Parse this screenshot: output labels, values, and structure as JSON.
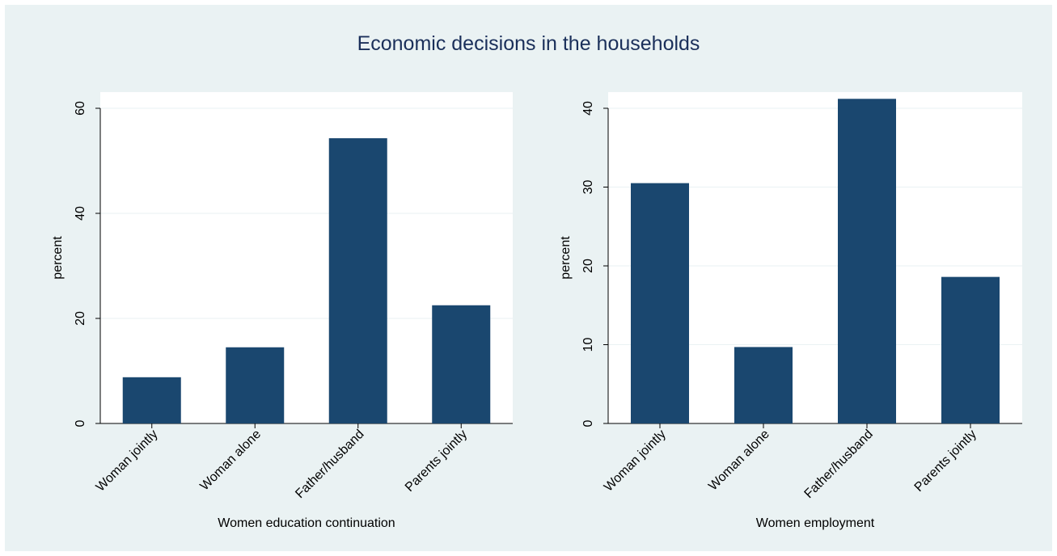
{
  "title": "Economic decisions in the households",
  "colors": {
    "background": "#eaf2f3",
    "plot_area": "#ffffff",
    "bar": "#1a476f",
    "grid": "#eaf2f3",
    "title": "#1a2f5a"
  },
  "chart_data": [
    {
      "type": "bar",
      "categories": [
        "Woman jointly",
        "Woman alone",
        "Father/husband",
        "Parents jointly"
      ],
      "values": [
        8.8,
        14.5,
        54.3,
        22.5
      ],
      "title": "",
      "xlabel": "Women education continuation",
      "ylabel": "percent",
      "ylim": [
        0,
        60
      ],
      "yticks": [
        0,
        20,
        40,
        60
      ],
      "grid": true
    },
    {
      "type": "bar",
      "categories": [
        "Woman jointly",
        "Woman alone",
        "Father/husband",
        "Parents jointly"
      ],
      "values": [
        30.5,
        9.7,
        41.2,
        18.6
      ],
      "title": "",
      "xlabel": "Women employment",
      "ylabel": "percent",
      "ylim": [
        0,
        40
      ],
      "yticks": [
        0,
        10,
        20,
        30,
        40
      ],
      "grid": true
    }
  ]
}
